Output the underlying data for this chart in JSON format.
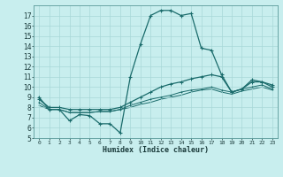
{
  "xlabel": "Humidex (Indice chaleur)",
  "x": [
    0,
    1,
    2,
    3,
    4,
    5,
    6,
    7,
    8,
    9,
    10,
    11,
    12,
    13,
    14,
    15,
    16,
    17,
    18,
    19,
    20,
    21,
    22,
    23
  ],
  "line1": [
    9.0,
    7.8,
    7.8,
    6.7,
    7.3,
    7.2,
    6.4,
    6.4,
    5.5,
    11.0,
    14.2,
    17.0,
    17.5,
    17.5,
    17.0,
    17.2,
    13.8,
    13.6,
    11.2,
    9.5,
    9.8,
    10.7,
    10.5,
    10.0
  ],
  "line2": [
    8.8,
    8.0,
    8.0,
    7.8,
    7.8,
    7.8,
    7.8,
    7.8,
    8.0,
    8.5,
    9.0,
    9.5,
    10.0,
    10.3,
    10.5,
    10.8,
    11.0,
    11.2,
    11.0,
    9.5,
    9.8,
    10.5,
    10.5,
    10.2
  ],
  "line3": [
    8.5,
    7.8,
    7.8,
    7.5,
    7.5,
    7.5,
    7.6,
    7.6,
    7.8,
    8.2,
    8.5,
    8.8,
    9.0,
    9.2,
    9.5,
    9.7,
    9.8,
    10.0,
    9.7,
    9.5,
    9.8,
    10.0,
    10.2,
    9.8
  ],
  "line4": [
    8.2,
    7.8,
    7.8,
    7.5,
    7.5,
    7.5,
    7.6,
    7.6,
    7.8,
    8.0,
    8.3,
    8.5,
    8.8,
    9.0,
    9.2,
    9.5,
    9.7,
    9.8,
    9.5,
    9.3,
    9.6,
    9.8,
    10.0,
    9.7
  ],
  "line_color": "#1a6b6b",
  "bg_color": "#c8eeee",
  "grid_color": "#a8d8d8",
  "ylim": [
    5,
    18
  ],
  "xlim": [
    -0.5,
    23.5
  ],
  "yticks": [
    5,
    6,
    7,
    8,
    9,
    10,
    11,
    12,
    13,
    14,
    15,
    16,
    17
  ],
  "xticks": [
    0,
    1,
    2,
    3,
    4,
    5,
    6,
    7,
    8,
    9,
    10,
    11,
    12,
    13,
    14,
    15,
    16,
    17,
    18,
    19,
    20,
    21,
    22,
    23
  ]
}
